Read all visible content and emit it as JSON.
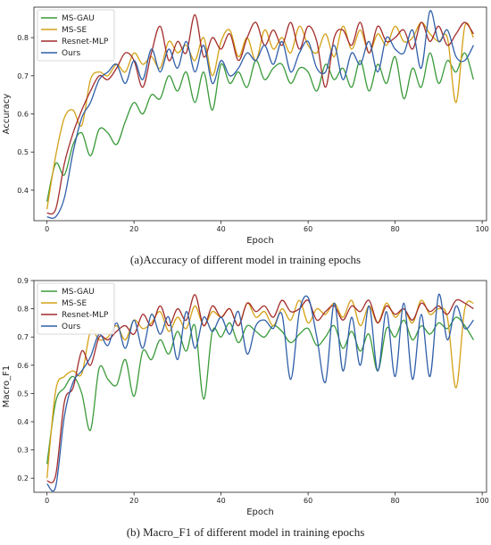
{
  "colors": {
    "MS-GAU": "#3a9a3a",
    "MS-SE": "#d4a016",
    "Resnet-MLP": "#a32c2c",
    "Ours": "#2f5fa8"
  },
  "chart_data": [
    {
      "type": "line",
      "caption": "(a)Accuracy of different model in training epochs",
      "xlabel": "Epoch",
      "ylabel": "Accuracy",
      "xlim": [
        -3,
        101
      ],
      "ylim": [
        0.32,
        0.88
      ],
      "xticks": [
        0,
        20,
        40,
        60,
        80,
        100
      ],
      "yticks": [
        0.4,
        0.5,
        0.6,
        0.7,
        0.8
      ],
      "legend": "top-left",
      "grid": false,
      "x": [
        0,
        2,
        4,
        6,
        8,
        10,
        12,
        14,
        16,
        18,
        20,
        22,
        24,
        26,
        28,
        30,
        32,
        34,
        36,
        38,
        40,
        42,
        44,
        46,
        48,
        50,
        52,
        54,
        56,
        58,
        60,
        62,
        64,
        66,
        68,
        70,
        72,
        74,
        76,
        78,
        80,
        82,
        84,
        86,
        88,
        90,
        92,
        94,
        96,
        98
      ],
      "series": [
        {
          "name": "MS-GAU",
          "values": [
            0.37,
            0.47,
            0.44,
            0.52,
            0.55,
            0.49,
            0.56,
            0.55,
            0.52,
            0.58,
            0.63,
            0.6,
            0.65,
            0.64,
            0.7,
            0.66,
            0.71,
            0.63,
            0.71,
            0.61,
            0.73,
            0.68,
            0.71,
            0.67,
            0.74,
            0.69,
            0.72,
            0.73,
            0.68,
            0.72,
            0.71,
            0.66,
            0.73,
            0.69,
            0.72,
            0.67,
            0.74,
            0.66,
            0.73,
            0.68,
            0.75,
            0.64,
            0.72,
            0.67,
            0.76,
            0.68,
            0.74,
            0.71,
            0.76,
            0.69
          ]
        },
        {
          "name": "MS-SE",
          "values": [
            0.35,
            0.49,
            0.59,
            0.61,
            0.57,
            0.69,
            0.71,
            0.7,
            0.73,
            0.71,
            0.76,
            0.73,
            0.75,
            0.72,
            0.79,
            0.76,
            0.78,
            0.74,
            0.8,
            0.7,
            0.79,
            0.82,
            0.75,
            0.8,
            0.74,
            0.82,
            0.77,
            0.8,
            0.76,
            0.83,
            0.78,
            0.76,
            0.81,
            0.75,
            0.83,
            0.77,
            0.82,
            0.76,
            0.81,
            0.78,
            0.83,
            0.79,
            0.8,
            0.84,
            0.81,
            0.79,
            0.8,
            0.63,
            0.83,
            0.8
          ]
        },
        {
          "name": "Resnet-MLP",
          "values": [
            0.34,
            0.35,
            0.47,
            0.55,
            0.61,
            0.66,
            0.7,
            0.69,
            0.72,
            0.76,
            0.74,
            0.67,
            0.76,
            0.83,
            0.74,
            0.79,
            0.76,
            0.86,
            0.75,
            0.8,
            0.77,
            0.81,
            0.74,
            0.8,
            0.84,
            0.78,
            0.82,
            0.78,
            0.84,
            0.77,
            0.83,
            0.79,
            0.67,
            0.8,
            0.82,
            0.78,
            0.84,
            0.76,
            0.83,
            0.79,
            0.8,
            0.82,
            0.77,
            0.84,
            0.79,
            0.83,
            0.78,
            0.81,
            0.84,
            0.81
          ]
        },
        {
          "name": "Ours",
          "values": [
            0.33,
            0.33,
            0.38,
            0.5,
            0.59,
            0.63,
            0.69,
            0.71,
            0.73,
            0.68,
            0.74,
            0.69,
            0.77,
            0.71,
            0.77,
            0.72,
            0.79,
            0.71,
            0.78,
            0.68,
            0.74,
            0.7,
            0.72,
            0.76,
            0.74,
            0.78,
            0.73,
            0.79,
            0.71,
            0.76,
            0.79,
            0.72,
            0.71,
            0.78,
            0.69,
            0.76,
            0.73,
            0.79,
            0.71,
            0.8,
            0.77,
            0.76,
            0.82,
            0.72,
            0.87,
            0.79,
            0.82,
            0.75,
            0.74,
            0.78
          ]
        }
      ]
    },
    {
      "type": "line",
      "caption": "(b) Macro_F1 of different model in training epochs",
      "xlabel": "Epoch",
      "ylabel": "Macro_F1",
      "xlim": [
        -3,
        101
      ],
      "ylim": [
        0.15,
        0.9
      ],
      "xticks": [
        0,
        20,
        40,
        60,
        80,
        100
      ],
      "yticks": [
        0.2,
        0.3,
        0.4,
        0.5,
        0.6,
        0.7,
        0.8,
        0.9
      ],
      "legend": "top-left",
      "grid": false,
      "x": [
        0,
        2,
        4,
        6,
        8,
        10,
        12,
        14,
        16,
        18,
        20,
        22,
        24,
        26,
        28,
        30,
        32,
        34,
        36,
        38,
        40,
        42,
        44,
        46,
        48,
        50,
        52,
        54,
        56,
        58,
        60,
        62,
        64,
        66,
        68,
        70,
        72,
        74,
        76,
        78,
        80,
        82,
        84,
        86,
        88,
        90,
        92,
        94,
        96,
        98
      ],
      "series": [
        {
          "name": "MS-GAU",
          "values": [
            0.25,
            0.47,
            0.52,
            0.56,
            0.5,
            0.37,
            0.59,
            0.55,
            0.53,
            0.62,
            0.49,
            0.65,
            0.62,
            0.69,
            0.64,
            0.72,
            0.65,
            0.74,
            0.48,
            0.72,
            0.7,
            0.75,
            0.68,
            0.74,
            0.72,
            0.7,
            0.74,
            0.72,
            0.68,
            0.71,
            0.73,
            0.67,
            0.7,
            0.74,
            0.66,
            0.72,
            0.65,
            0.71,
            0.58,
            0.73,
            0.7,
            0.76,
            0.69,
            0.74,
            0.71,
            0.75,
            0.73,
            0.77,
            0.74,
            0.69
          ]
        },
        {
          "name": "MS-SE",
          "values": [
            0.2,
            0.51,
            0.56,
            0.58,
            0.57,
            0.72,
            0.69,
            0.7,
            0.74,
            0.69,
            0.76,
            0.73,
            0.75,
            0.79,
            0.72,
            0.77,
            0.73,
            0.81,
            0.74,
            0.79,
            0.77,
            0.8,
            0.74,
            0.82,
            0.77,
            0.79,
            0.74,
            0.8,
            0.76,
            0.83,
            0.75,
            0.8,
            0.78,
            0.82,
            0.77,
            0.83,
            0.74,
            0.81,
            0.75,
            0.82,
            0.77,
            0.8,
            0.75,
            0.83,
            0.78,
            0.8,
            0.77,
            0.52,
            0.8,
            0.82
          ]
        },
        {
          "name": "Resnet-MLP",
          "values": [
            0.19,
            0.21,
            0.47,
            0.52,
            0.65,
            0.6,
            0.7,
            0.69,
            0.72,
            0.74,
            0.71,
            0.78,
            0.74,
            0.81,
            0.74,
            0.8,
            0.76,
            0.85,
            0.74,
            0.81,
            0.77,
            0.8,
            0.74,
            0.82,
            0.79,
            0.81,
            0.77,
            0.83,
            0.79,
            0.8,
            0.83,
            0.76,
            0.79,
            0.81,
            0.76,
            0.81,
            0.79,
            0.83,
            0.75,
            0.81,
            0.78,
            0.8,
            0.76,
            0.82,
            0.79,
            0.81,
            0.78,
            0.83,
            0.82,
            0.8
          ]
        },
        {
          "name": "Ours",
          "values": [
            0.18,
            0.17,
            0.42,
            0.54,
            0.58,
            0.63,
            0.71,
            0.67,
            0.75,
            0.66,
            0.76,
            0.66,
            0.78,
            0.71,
            0.77,
            0.62,
            0.79,
            0.66,
            0.77,
            0.72,
            0.77,
            0.71,
            0.79,
            0.64,
            0.74,
            0.76,
            0.73,
            0.78,
            0.55,
            0.79,
            0.84,
            0.7,
            0.54,
            0.82,
            0.58,
            0.77,
            0.6,
            0.81,
            0.58,
            0.79,
            0.56,
            0.82,
            0.55,
            0.78,
            0.56,
            0.85,
            0.69,
            0.81,
            0.73,
            0.76
          ]
        }
      ]
    }
  ]
}
